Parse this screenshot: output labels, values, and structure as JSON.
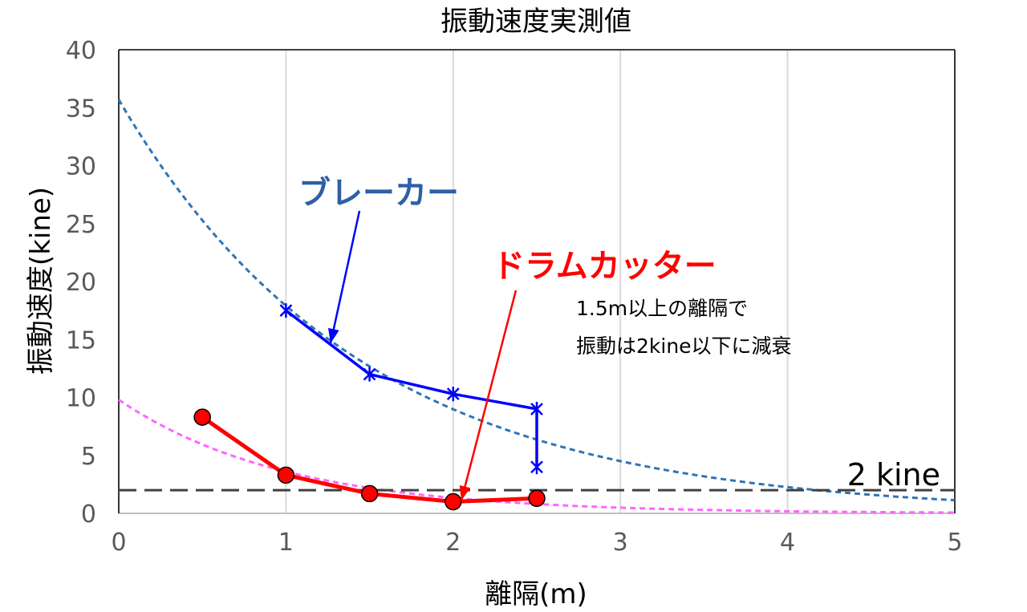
{
  "chart_data": {
    "type": "line",
    "title": "振動速度実測値",
    "xlabel": "離隔(m)",
    "ylabel": "振動速度(kine)",
    "xlim": [
      0,
      5
    ],
    "ylim": [
      0,
      40
    ],
    "x_ticks": [
      0,
      1,
      2,
      3,
      4,
      5
    ],
    "y_ticks": [
      0,
      5,
      10,
      15,
      20,
      25,
      30,
      35,
      40
    ],
    "grid": true,
    "series": [
      {
        "name": "ブレーカー",
        "color": "#0000ff",
        "marker": "star",
        "points": [
          [
            1,
            17.5
          ],
          [
            1.5,
            12
          ],
          [
            2,
            10.3
          ],
          [
            2.5,
            9
          ],
          [
            2.5,
            4
          ]
        ]
      },
      {
        "name": "ドラムカッター",
        "color": "#ff0000",
        "marker": "circle",
        "points": [
          [
            0.5,
            8.3
          ],
          [
            1,
            3.3
          ],
          [
            1.5,
            1.7
          ],
          [
            2,
            1
          ],
          [
            2.5,
            1.3
          ]
        ]
      }
    ],
    "trendlines": [
      {
        "color": "#2e75b6",
        "style": "dotted",
        "model": "exponential",
        "a": 35.7,
        "b": -0.69
      },
      {
        "color": "#ff66ff",
        "style": "dotted",
        "model": "exponential",
        "a": 9.8,
        "b": -1.0
      }
    ],
    "reference_line": {
      "y": 2,
      "label": "2 kine",
      "color": "#404040",
      "style": "dashed"
    },
    "annotations": {
      "breaker_label": "ブレーカー",
      "drum_label": "ドラムカッター",
      "note_line1": "1.5m以上の離隔で",
      "note_line2": "振動は2kine以下に減衰"
    },
    "annotation_colors": {
      "breaker": "#2e5fa8",
      "drum": "#ff0000"
    }
  }
}
